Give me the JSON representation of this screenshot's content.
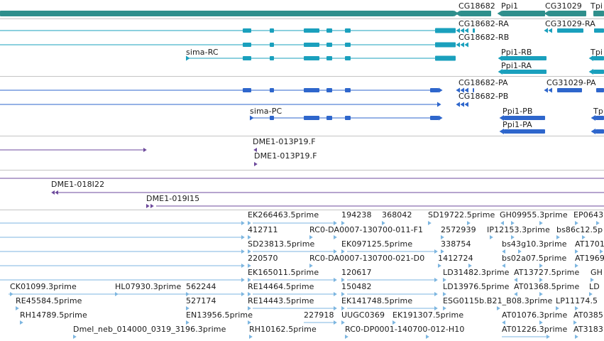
{
  "colors": {
    "gene": "#2f8f8c",
    "transcript": "#1aa0bd",
    "protein": "#2e66cc",
    "bac": "#6d4a9c",
    "est": "#7db6e0",
    "separator": "#c4c4c4"
  },
  "gene_track": {
    "labels": [
      "CG18682",
      "Ppi1",
      "CG31029",
      "Tpi"
    ]
  },
  "transcript_track": {
    "labels": [
      "CG18682-RA",
      "CG31029-RA",
      "CG18682-RB",
      "sima-RC",
      "Ppi1-RB",
      "Tpi",
      "Ppi1-RA"
    ]
  },
  "protein_track": {
    "labels": [
      "CG18682-PA",
      "CG31029-PA",
      "CG18682-PB",
      "sima-PC",
      "Ppi1-PB",
      "Tp",
      "Ppi1-PA"
    ]
  },
  "bac_track_1": {
    "labels": [
      "DME1-013P19.F",
      "DME1-013P19.F"
    ]
  },
  "bac_track_2": {
    "labels": [
      "DME1-018I22",
      "DME1-019I15"
    ]
  },
  "est_track": {
    "labels": [
      "EK266463.5prime",
      "194238",
      "368042",
      "SD19722.5prime",
      "GH09955.3prime",
      "EP0643",
      "412711",
      "RC0-DA0007-130700-011-F1",
      "2572939",
      "IP12153.3prime",
      "bs86c12.5p",
      "SD23813.5prime",
      "EK097125.5prime",
      "338754",
      "bs43g10.3prime",
      "AT1701",
      "220570",
      "RC0-DA0007-130700-021-D0",
      "1412724",
      "bs02a07.5prime",
      "AT1969",
      "EK165011.5prime",
      "120617",
      "LD31482.3prime",
      "AT13727.5prime",
      "GH",
      "CK01099.3prime",
      "HL07930.3prime",
      "562244",
      "RE14464.5prime",
      "150482",
      "LD13976.5prime",
      "AT01368.5prime",
      "LD",
      "RE45584.5prime",
      "527174",
      "RE14443.5prime",
      "EK141748.5prime",
      "ESG0115b.B21_B08.3prime",
      "LP11174.5",
      "RH14789.5prime",
      "EN13956.5prime",
      "227918",
      "UUGC0369",
      "EK191307.5prime",
      "AT01076.3prime",
      "AT0385",
      "Dmel_neb_014000_0319_3196.3prime",
      "RH10162.5prime",
      "RC0-DP0001-140700-012-H10",
      "AT01226.3prime",
      "AT3183"
    ]
  }
}
